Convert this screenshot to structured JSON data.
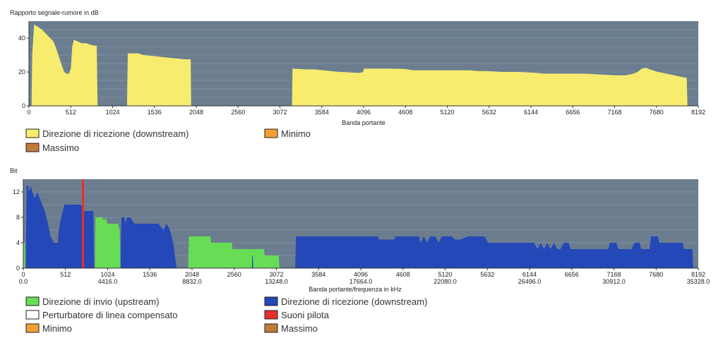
{
  "colors": {
    "plot_bg": "#6b7d8f",
    "gridline": "#7f90a1",
    "snr_fill": "#f7ec6e",
    "upstream": "#66dd55",
    "downstream": "#2448b8",
    "crosstalk": "#ffffff",
    "pilot": "#e8302a",
    "minimum": "#f5a033",
    "maximum": "#c07a38"
  },
  "chart_data": [
    {
      "type": "area",
      "title": "Rapporto segnale-rumore in dB",
      "xlabel": "Banda portante",
      "ylabel": "",
      "xlim": [
        0,
        8192
      ],
      "ylim": [
        0,
        50
      ],
      "x_ticks": [
        "0",
        "512",
        "1024",
        "1536",
        "2048",
        "2560",
        "3072",
        "3584",
        "4096",
        "4608",
        "5120",
        "5632",
        "6144",
        "6656",
        "7168",
        "7680",
        "8192"
      ],
      "y_ticks": [
        "0",
        "20",
        "40"
      ],
      "grid": true,
      "legend": [
        {
          "label": "Direzione di ricezione (downstream)",
          "color_key": "snr_fill"
        },
        {
          "label": "Minimo",
          "color_key": "minimum"
        },
        {
          "label": "Massimo",
          "color_key": "maximum"
        }
      ],
      "series": [
        {
          "name": "Direzione di ricezione (downstream)",
          "color_key": "snr_fill",
          "points": [
            [
              32,
              0
            ],
            [
              40,
              30
            ],
            [
              64,
              48
            ],
            [
              100,
              47
            ],
            [
              160,
              45
            ],
            [
              240,
              41
            ],
            [
              300,
              38
            ],
            [
              340,
              33
            ],
            [
              380,
              27
            ],
            [
              410,
              23
            ],
            [
              430,
              20
            ],
            [
              460,
              19
            ],
            [
              490,
              19
            ],
            [
              512,
              22
            ],
            [
              530,
              35
            ],
            [
              550,
              39
            ],
            [
              600,
              38
            ],
            [
              640,
              37
            ],
            [
              700,
              37
            ],
            [
              760,
              36
            ],
            [
              800,
              35.5
            ],
            [
              830,
              35.5
            ],
            [
              840,
              0
            ],
            [
              1200,
              0
            ],
            [
              1210,
              31
            ],
            [
              1260,
              31
            ],
            [
              1340,
              31
            ],
            [
              1400,
              30
            ],
            [
              1500,
              29.5
            ],
            [
              1600,
              29
            ],
            [
              1700,
              28.5
            ],
            [
              1800,
              28
            ],
            [
              1900,
              27.5
            ],
            [
              1980,
              27.5
            ],
            [
              1985,
              0
            ],
            [
              3220,
              0
            ],
            [
              3225,
              22
            ],
            [
              3300,
              21.8
            ],
            [
              3400,
              21.5
            ],
            [
              3500,
              21.5
            ],
            [
              3600,
              21
            ],
            [
              3700,
              20.5
            ],
            [
              3800,
              20
            ],
            [
              3900,
              19.8
            ],
            [
              4000,
              19.5
            ],
            [
              4050,
              19.5
            ],
            [
              4090,
              20
            ],
            [
              4100,
              22
            ],
            [
              4200,
              22
            ],
            [
              4400,
              22
            ],
            [
              4600,
              21.8
            ],
            [
              4700,
              21
            ],
            [
              4800,
              21
            ],
            [
              5000,
              21
            ],
            [
              5200,
              21
            ],
            [
              5400,
              21
            ],
            [
              5500,
              20.5
            ],
            [
              5600,
              20.5
            ],
            [
              5800,
              20
            ],
            [
              6000,
              20
            ],
            [
              6200,
              19.5
            ],
            [
              6300,
              19
            ],
            [
              6500,
              19
            ],
            [
              6800,
              19
            ],
            [
              7000,
              18.5
            ],
            [
              7200,
              18
            ],
            [
              7300,
              18
            ],
            [
              7400,
              19
            ],
            [
              7450,
              20
            ],
            [
              7500,
              22
            ],
            [
              7550,
              22.5
            ],
            [
              7600,
              21.5
            ],
            [
              7700,
              20
            ],
            [
              7800,
              19
            ],
            [
              7900,
              18
            ],
            [
              8000,
              17
            ],
            [
              8050,
              16.5
            ],
            [
              8060,
              0
            ]
          ]
        }
      ]
    },
    {
      "type": "area",
      "title": "Bit",
      "xlabel": "Banda portante/frequenza in kHz",
      "ylabel": "",
      "xlim": [
        0,
        8192
      ],
      "ylim": [
        0,
        14
      ],
      "x_ticks": [
        "0",
        "512",
        "1024",
        "1536",
        "2048",
        "2560",
        "3072",
        "3584",
        "4096",
        "4608",
        "5120",
        "5632",
        "6144",
        "6656",
        "7168",
        "7680",
        "8192"
      ],
      "x_ticks_khz": [
        "0.0",
        "4416.0",
        "8832.0",
        "13248.0",
        "17664.0",
        "22080.0",
        "26496.0",
        "30912.0",
        "35328.0"
      ],
      "y_ticks": [
        "0",
        "4",
        "8",
        "12"
      ],
      "grid": true,
      "legend": [
        {
          "label": "Direzione di invio (upstream)",
          "color_key": "upstream"
        },
        {
          "label": "Direzione di ricezione (downstream)",
          "color_key": "downstream"
        },
        {
          "label": "Perturbatore di linea compensato",
          "color_key": "crosstalk"
        },
        {
          "label": "Suoni pilota",
          "color_key": "pilot"
        },
        {
          "label": "Minimo",
          "color_key": "minimum"
        },
        {
          "label": "Massimo",
          "color_key": "maximum"
        }
      ],
      "pilot_tones": [
        724
      ],
      "series": [
        {
          "name": "Direzione di invio (upstream)",
          "color_key": "upstream",
          "points": [
            [
              0,
              0
            ],
            [
              0,
              4
            ],
            [
              20,
              4
            ],
            [
              25,
              0
            ],
            [
              870,
              0
            ],
            [
              875,
              8
            ],
            [
              960,
              8
            ],
            [
              980,
              7.5
            ],
            [
              1000,
              8
            ],
            [
              1020,
              7
            ],
            [
              1150,
              7
            ],
            [
              1170,
              6
            ],
            [
              1180,
              0
            ],
            [
              2000,
              0
            ],
            [
              2010,
              5
            ],
            [
              2270,
              5
            ],
            [
              2280,
              4
            ],
            [
              2530,
              4
            ],
            [
              2540,
              3
            ],
            [
              2920,
              3
            ],
            [
              2930,
              2
            ],
            [
              3100,
              2
            ],
            [
              3110,
              0
            ]
          ]
        },
        {
          "name": "Direzione di ricezione (downstream)",
          "color_key": "downstream",
          "points": [
            [
              30,
              0
            ],
            [
              40,
              13
            ],
            [
              60,
              13
            ],
            [
              70,
              12
            ],
            [
              90,
              13
            ],
            [
              110,
              12
            ],
            [
              140,
              11
            ],
            [
              170,
              12
            ],
            [
              200,
              11
            ],
            [
              230,
              10
            ],
            [
              260,
              9
            ],
            [
              300,
              7
            ],
            [
              330,
              5
            ],
            [
              370,
              4
            ],
            [
              420,
              4
            ],
            [
              430,
              6
            ],
            [
              460,
              8
            ],
            [
              500,
              10
            ],
            [
              700,
              10
            ],
            [
              740,
              9
            ],
            [
              850,
              9
            ],
            [
              860,
              0
            ],
            [
              1180,
              0
            ],
            [
              1190,
              8
            ],
            [
              1230,
              8
            ],
            [
              1240,
              7
            ],
            [
              1260,
              8
            ],
            [
              1300,
              8
            ],
            [
              1320,
              7.5
            ],
            [
              1350,
              7
            ],
            [
              1600,
              7
            ],
            [
              1640,
              7
            ],
            [
              1700,
              6
            ],
            [
              1740,
              7
            ],
            [
              1780,
              6
            ],
            [
              1800,
              5
            ],
            [
              1820,
              4
            ],
            [
              1860,
              0
            ],
            [
              2775,
              0
            ],
            [
              2778,
              2
            ],
            [
              2785,
              2
            ],
            [
              2790,
              0
            ],
            [
              3300,
              0
            ],
            [
              3310,
              5
            ],
            [
              4300,
              5
            ],
            [
              4320,
              4.5
            ],
            [
              4500,
              4.5
            ],
            [
              4520,
              5
            ],
            [
              4800,
              5
            ],
            [
              4820,
              4
            ],
            [
              4860,
              5
            ],
            [
              4900,
              4
            ],
            [
              4940,
              5
            ],
            [
              5000,
              5
            ],
            [
              5040,
              4
            ],
            [
              5080,
              5
            ],
            [
              5200,
              5
            ],
            [
              5240,
              4.5
            ],
            [
              5300,
              4.5
            ],
            [
              5400,
              5
            ],
            [
              5600,
              5
            ],
            [
              5640,
              4
            ],
            [
              6200,
              4
            ],
            [
              6240,
              3
            ],
            [
              6280,
              4
            ],
            [
              6320,
              3
            ],
            [
              6360,
              4
            ],
            [
              6400,
              3
            ],
            [
              6440,
              4
            ],
            [
              6480,
              3
            ],
            [
              6520,
              3
            ],
            [
              6560,
              4
            ],
            [
              6620,
              4
            ],
            [
              6640,
              3
            ],
            [
              7100,
              3
            ],
            [
              7120,
              4
            ],
            [
              7200,
              4
            ],
            [
              7220,
              3
            ],
            [
              7380,
              3
            ],
            [
              7420,
              4
            ],
            [
              7480,
              4
            ],
            [
              7500,
              3
            ],
            [
              7600,
              3
            ],
            [
              7620,
              5
            ],
            [
              7700,
              5
            ],
            [
              7720,
              4
            ],
            [
              8000,
              4
            ],
            [
              8020,
              3
            ],
            [
              8120,
              3
            ],
            [
              8130,
              0
            ]
          ]
        }
      ]
    }
  ]
}
